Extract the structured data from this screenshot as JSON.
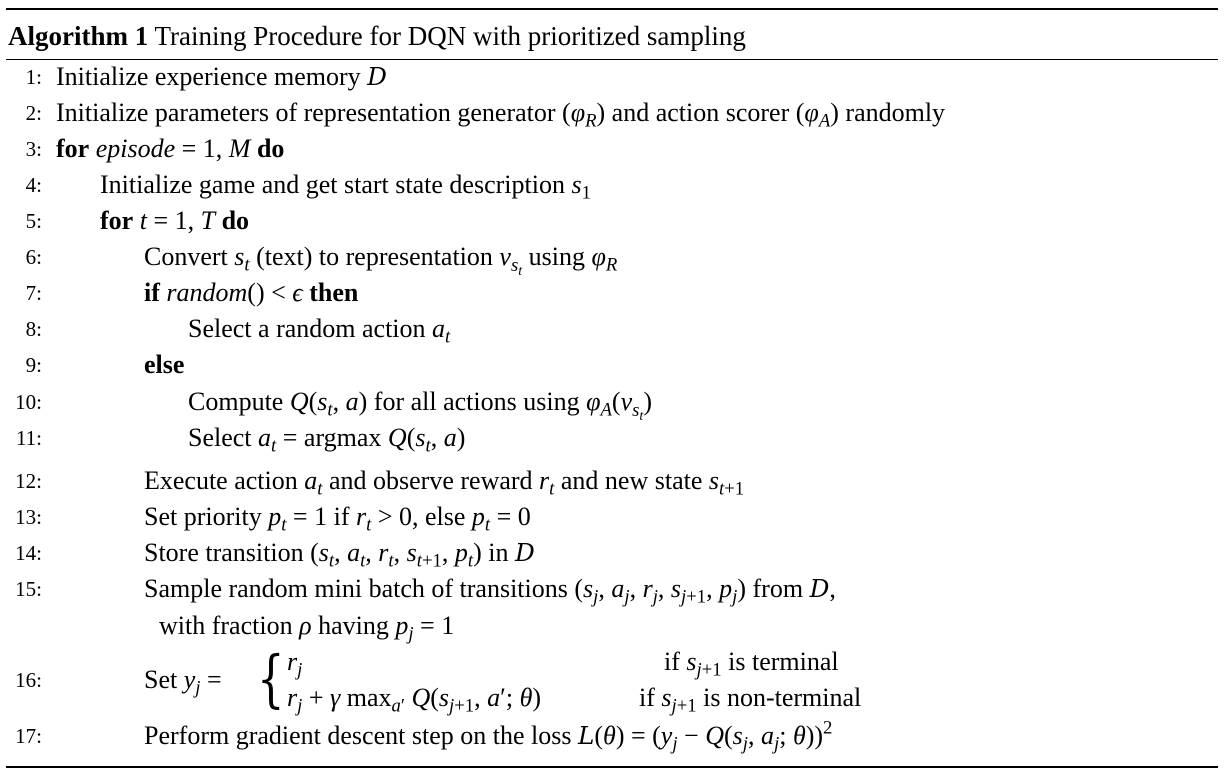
{
  "algorithm": {
    "label": "Algorithm 1",
    "title": "Training Procedure for DQN with prioritized sampling",
    "lines": {
      "n1": "1:",
      "n2": "2:",
      "n3": "3:",
      "n4": "4:",
      "n5": "5:",
      "n6": "6:",
      "n7": "7:",
      "n8": "8:",
      "n9": "9:",
      "n10": "10:",
      "n11": "11:",
      "n12": "12:",
      "n13": "13:",
      "n14": "14:",
      "n15": "15:",
      "n16": "16:",
      "n17": "17:"
    },
    "text": {
      "l1": "Initialize experience memory",
      "l2a": "Initialize parameters of representation generator (",
      "l2b": ") and action scorer (",
      "l2c": ") randomly",
      "for": "for",
      "do": "do",
      "if": "if",
      "then": "then",
      "else": "else",
      "l4": "Initialize game and get start state description",
      "l6a": "Convert",
      "l6b": "(text) to representation",
      "l6c": "using",
      "l8": "Select a random action",
      "l10a": "Compute",
      "l10b": "for all actions using",
      "l11": "Select",
      "argmax": "argmax",
      "l12a": "Execute action",
      "l12b": "and observe reward",
      "l12c": "and new state",
      "l13a": "Set priority",
      "l13b": "if",
      "l13c": ", else",
      "l14a": "Store transition",
      "l14b": "in",
      "l15a": "Sample random mini batch of transitions",
      "l15b": "from",
      "l15c": "with fraction",
      "l15d": "having",
      "l16a": "Set",
      "l16if1": "if",
      "l16term": "is terminal",
      "l16if2": "if",
      "l16nonterm": "is non-terminal",
      "max": "max",
      "l17": "Perform gradient descent step on the loss"
    }
  }
}
